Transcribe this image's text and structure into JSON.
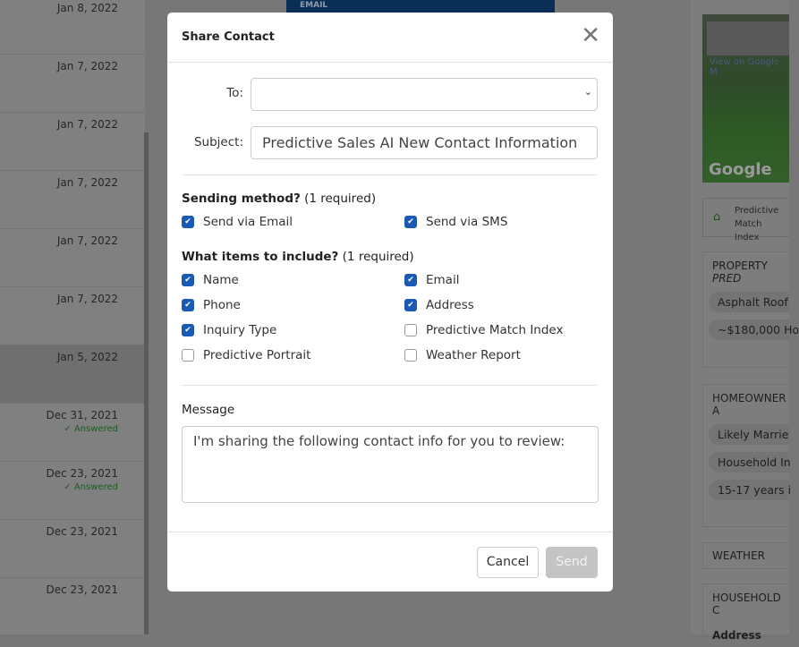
{
  "list": {
    "rows": [
      {
        "date": "Jan 8, 2022",
        "status": ""
      },
      {
        "date": "Jan 7, 2022",
        "status": ""
      },
      {
        "date": "Jan 7, 2022",
        "status": ""
      },
      {
        "date": "Jan 7, 2022",
        "status": ""
      },
      {
        "date": "Jan 7, 2022",
        "status": ""
      },
      {
        "date": "Jan 7, 2022",
        "status": ""
      },
      {
        "date": "Jan 5, 2022",
        "status": ""
      },
      {
        "date": "Dec 31, 2021",
        "status": "Answered"
      },
      {
        "date": "Dec 23, 2021",
        "status": "Answered"
      },
      {
        "date": "Dec 23, 2021",
        "status": ""
      },
      {
        "date": "Dec 23, 2021",
        "status": ""
      }
    ]
  },
  "center": {
    "header": "EMAIL"
  },
  "right": {
    "map_link": "View on Google M",
    "map_logo": "Google",
    "pmi": {
      "line1": "Predictive",
      "line2": "Match Index",
      "icon": "home-icon"
    },
    "property": {
      "title": "PROPERTY ",
      "title_em": "PRED",
      "pills": [
        "Asphalt Roof",
        "~$180,000 Ho"
      ]
    },
    "homeowner": {
      "title": "HOMEOWNER A",
      "pills": [
        "Likely Marrie",
        "Household In",
        "15-17 years i"
      ]
    },
    "weather": {
      "title": "WEATHER"
    },
    "household": {
      "title": "HOUSEHOLD C",
      "sub": "Address"
    }
  },
  "modal": {
    "title": "Share Contact",
    "to_label": "To:",
    "to_value": "",
    "subject_label": "Subject:",
    "subject_value": "Predictive Sales AI New Contact Information",
    "sending_heading": "Sending method?",
    "sending_req": " (1 required)",
    "sending": [
      {
        "label": "Send via Email",
        "checked": true
      },
      {
        "label": "Send via SMS",
        "checked": true
      }
    ],
    "items_heading": "What items to include?",
    "items_req": " (1 required)",
    "items": [
      {
        "label": "Name",
        "checked": true
      },
      {
        "label": "Email",
        "checked": true
      },
      {
        "label": "Phone",
        "checked": true
      },
      {
        "label": "Address",
        "checked": true
      },
      {
        "label": "Inquiry Type",
        "checked": true
      },
      {
        "label": "Predictive Match Index",
        "checked": false
      },
      {
        "label": "Predictive Portrait",
        "checked": false
      },
      {
        "label": "Weather Report",
        "checked": false
      }
    ],
    "message_label": "Message",
    "message_value": "I'm sharing the following contact info for you to review:",
    "cancel": "Cancel",
    "send": "Send"
  },
  "colors": {
    "accent": "#1a5ab4",
    "answered": "#2e8b35",
    "overlay": "rgba(0,0,0,0.5)"
  }
}
